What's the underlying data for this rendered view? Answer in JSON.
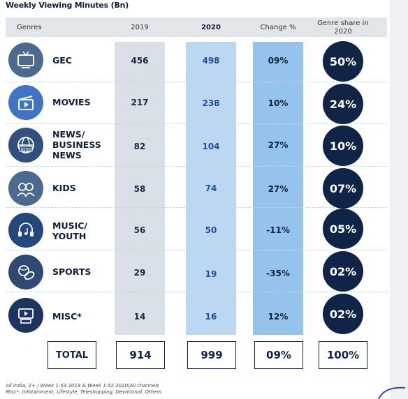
{
  "title": "Weekly Viewing Minutes (Bn)",
  "headers": {
    "genres": "Genres",
    "y2019": "2019",
    "y2020": "2020",
    "change": "Change %",
    "share": "Genre share in 2020"
  },
  "rows": [
    {
      "genre": "GEC",
      "icon": "tv-icon",
      "v2019": "456",
      "v2020": "498",
      "change": "09%",
      "share": "50%"
    },
    {
      "genre": "MOVIES",
      "icon": "clapperboard-icon",
      "v2019": "217",
      "v2020": "238",
      "change": "10%",
      "share": "24%"
    },
    {
      "genre": "NEWS/\nBUSINESS\nNEWS",
      "icon": "globe-news-icon",
      "v2019": "82",
      "v2020": "104",
      "change": "27%",
      "share": "10%"
    },
    {
      "genre": "KIDS",
      "icon": "kids-icon",
      "v2019": "58",
      "v2020": "74",
      "change": "27%",
      "share": "07%"
    },
    {
      "genre": "MUSIC/\nYOUTH",
      "icon": "music-headphones-icon",
      "v2019": "56",
      "v2020": "50",
      "change": "-11%",
      "share": "05%"
    },
    {
      "genre": "SPORTS",
      "icon": "sports-balls-icon",
      "v2019": "29",
      "v2020": "19",
      "change": "-35%",
      "share": "02%"
    },
    {
      "genre": "MISC*",
      "icon": "misc-media-icon",
      "v2019": "14",
      "v2020": "16",
      "change": "12%",
      "share": "02%"
    }
  ],
  "total": {
    "label": "TOTAL",
    "v2019": "914",
    "v2020": "999",
    "change": "09%",
    "share": "100%"
  },
  "footnotes": [
    "All India, 2+ / Week 1-53 2019 & Week 1-52 2020|All channels",
    "Misc*: Infotainment, Lifestyle, Teleshopping, Devotional, Others"
  ],
  "colors": {
    "navy": "#0f2446",
    "col_2019": "#d9e0e7",
    "col_2020": "#bcd7f1",
    "col_change": "#96c3eb",
    "value_2020": "#1f4e9e"
  },
  "chart_data": {
    "type": "table",
    "title": "Weekly Viewing Minutes (Bn)",
    "columns": [
      "Genres",
      "2019",
      "2020",
      "Change %",
      "Genre share in 2020"
    ],
    "categories": [
      "GEC",
      "MOVIES",
      "NEWS/BUSINESS NEWS",
      "KIDS",
      "MUSIC/YOUTH",
      "SPORTS",
      "MISC*"
    ],
    "series": [
      {
        "name": "2019",
        "values": [
          456,
          217,
          82,
          58,
          56,
          29,
          14
        ]
      },
      {
        "name": "2020",
        "values": [
          498,
          238,
          104,
          74,
          50,
          19,
          16
        ]
      },
      {
        "name": "Change %",
        "values": [
          9,
          10,
          27,
          27,
          -11,
          -35,
          12
        ]
      },
      {
        "name": "Genre share in 2020",
        "values": [
          50,
          24,
          10,
          7,
          5,
          2,
          2
        ]
      }
    ],
    "totals": {
      "2019": 914,
      "2020": 999,
      "Change %": 9,
      "Genre share in 2020": 100
    }
  }
}
